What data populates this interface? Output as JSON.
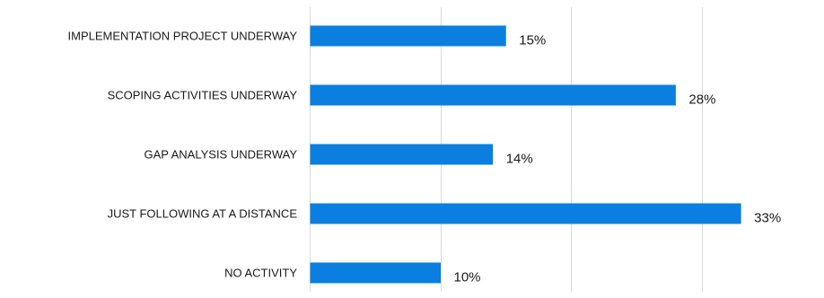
{
  "chart_data": {
    "type": "bar",
    "orientation": "horizontal",
    "categories": [
      "IMPLEMENTATION PROJECT UNDERWAY",
      "SCOPING ACTIVITIES UNDERWAY",
      "GAP ANALYSIS UNDERWAY",
      "JUST FOLLOWING AT A DISTANCE",
      "NO ACTIVITY"
    ],
    "values": [
      15,
      28,
      14,
      33,
      10
    ],
    "value_labels": [
      "15%",
      "28%",
      "14%",
      "33%",
      "10%"
    ],
    "unit": "%",
    "xlim": [
      0,
      40
    ],
    "grid": true,
    "grid_step": 10,
    "legend": "none",
    "bar_color": "#0a7fe0",
    "title": "",
    "xlabel": "",
    "ylabel": ""
  }
}
